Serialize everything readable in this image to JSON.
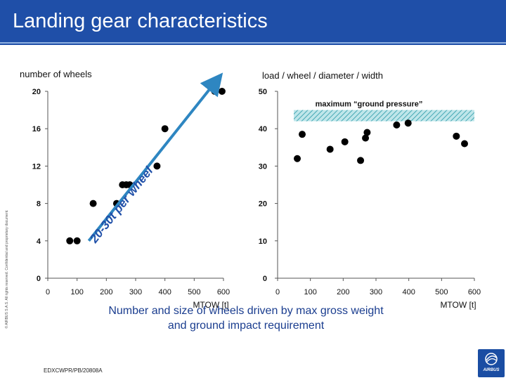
{
  "page": {
    "title": "Landing gear characteristics",
    "copyright": "© AIRBUS S.A.S. All rights reserved. Confidential and proprietary document.",
    "caption_lines": [
      "Number and size of wheels driven by max gross weight",
      "and ground impact requirement"
    ],
    "reference": "EDXCWPR/PB/20808A",
    "logo_text": "AIRBUS",
    "colors": {
      "header": "#1f4fa8",
      "arrow": "#2e86c1",
      "caption": "#1a3d8f",
      "band": "#bfe6ea",
      "band_hatch": "#2a9aa8"
    }
  },
  "chart_data": [
    {
      "type": "scatter",
      "title": "number of wheels",
      "xlabel": "MTOW [t]",
      "ylabel": "",
      "xlim": [
        0,
        600
      ],
      "ylim": [
        0,
        20
      ],
      "xticks": [
        0,
        100,
        200,
        300,
        400,
        500,
        600
      ],
      "yticks": [
        0,
        4,
        8,
        12,
        16,
        20
      ],
      "grid": false,
      "series": [
        {
          "values": [
            {
              "x": 75,
              "y": 4
            },
            {
              "x": 100,
              "y": 4
            },
            {
              "x": 155,
              "y": 8
            },
            {
              "x": 235,
              "y": 8
            },
            {
              "x": 255,
              "y": 10
            },
            {
              "x": 268,
              "y": 10
            },
            {
              "x": 280,
              "y": 10
            },
            {
              "x": 373,
              "y": 12
            },
            {
              "x": 400,
              "y": 16
            },
            {
              "x": 570,
              "y": 20
            },
            {
              "x": 595,
              "y": 20
            }
          ]
        }
      ],
      "annotations": [
        {
          "type": "arrow",
          "label": "20-30t per wheel",
          "from": {
            "x": 140,
            "y": 4
          },
          "to": {
            "x": 580,
            "y": 21.3
          }
        }
      ]
    },
    {
      "type": "scatter",
      "title": "load / wheel / diameter / width",
      "xlabel": "MTOW [t]",
      "ylabel": "",
      "xlim": [
        0,
        600
      ],
      "ylim": [
        0,
        50
      ],
      "xticks": [
        0,
        100,
        200,
        300,
        400,
        500,
        600
      ],
      "yticks": [
        0,
        10,
        20,
        30,
        40,
        50
      ],
      "grid": false,
      "series": [
        {
          "values": [
            {
              "x": 60,
              "y": 32
            },
            {
              "x": 75,
              "y": 38.5
            },
            {
              "x": 160,
              "y": 34.5
            },
            {
              "x": 205,
              "y": 36.5
            },
            {
              "x": 253,
              "y": 31.5
            },
            {
              "x": 268,
              "y": 37.5
            },
            {
              "x": 273,
              "y": 39
            },
            {
              "x": 363,
              "y": 41
            },
            {
              "x": 398,
              "y": 41.5
            },
            {
              "x": 545,
              "y": 38
            },
            {
              "x": 570,
              "y": 36
            }
          ]
        }
      ],
      "annotations": [
        {
          "type": "band",
          "label": "maximum “ground pressure”",
          "y_from": 42,
          "y_to": 45
        }
      ]
    }
  ]
}
